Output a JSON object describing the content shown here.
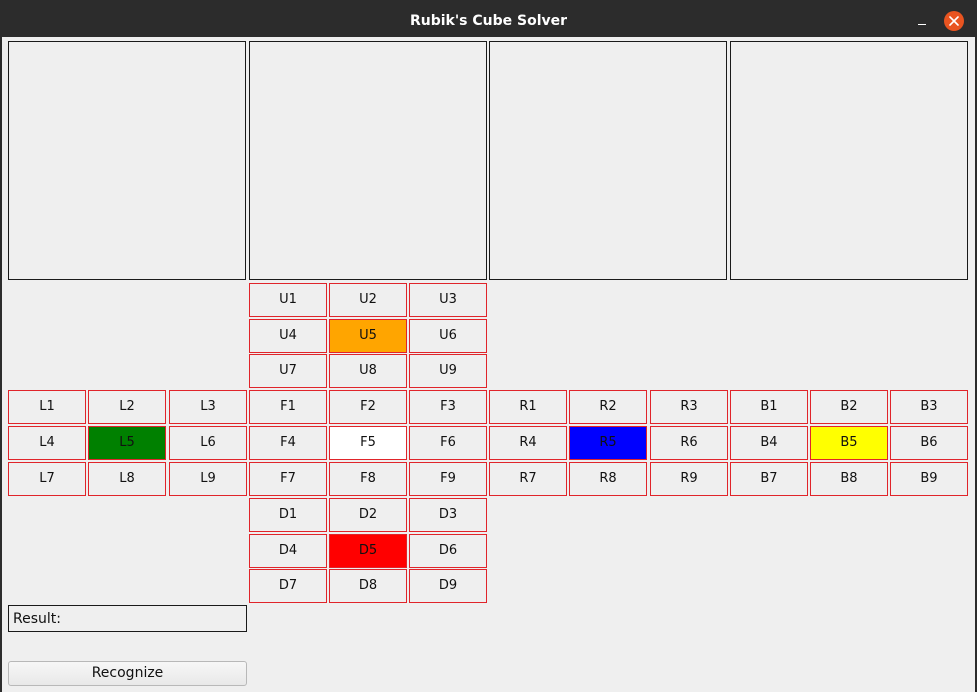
{
  "window": {
    "title": "Rubik's Cube Solver"
  },
  "colors": {
    "sticker_border": "#e0242a",
    "default_cell": "#efefef",
    "U5": "#ffa500",
    "L5": "#008000",
    "F5": "#ffffff",
    "R5": "#0000ff",
    "B5": "#ffff00",
    "D5": "#ff0000",
    "close_button": "#e95420"
  },
  "faces": {
    "U": [
      "U1",
      "U2",
      "U3",
      "U4",
      "U5",
      "U6",
      "U7",
      "U8",
      "U9"
    ],
    "L": [
      "L1",
      "L2",
      "L3",
      "L4",
      "L5",
      "L6",
      "L7",
      "L8",
      "L9"
    ],
    "F": [
      "F1",
      "F2",
      "F3",
      "F4",
      "F5",
      "F6",
      "F7",
      "F8",
      "F9"
    ],
    "R": [
      "R1",
      "R2",
      "R3",
      "R4",
      "R5",
      "R6",
      "R7",
      "R8",
      "R9"
    ],
    "B": [
      "B1",
      "B2",
      "B3",
      "B4",
      "B5",
      "B6",
      "B7",
      "B8",
      "B9"
    ],
    "D": [
      "D1",
      "D2",
      "D3",
      "D4",
      "D5",
      "D6",
      "D7",
      "D8",
      "D9"
    ]
  },
  "result": {
    "label": "Result:"
  },
  "recognize_button": {
    "label": "Recognize"
  },
  "icons": {
    "minimize": "minimize-icon",
    "close": "close-icon"
  }
}
